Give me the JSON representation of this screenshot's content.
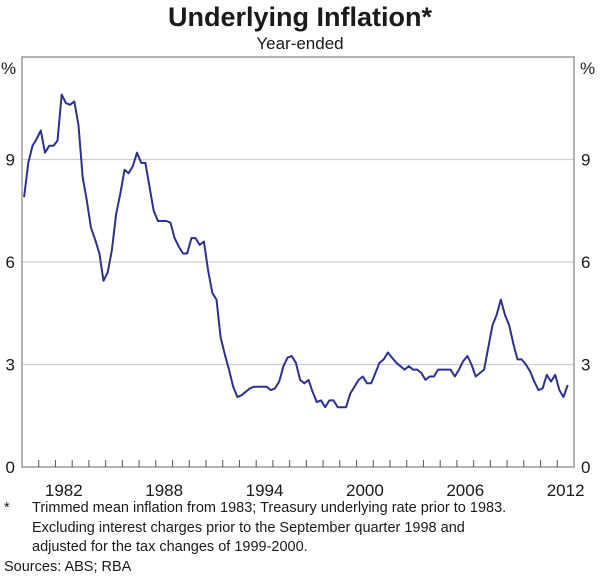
{
  "chart_data": {
    "type": "line",
    "title": "Underlying Inflation*",
    "subtitle": "Year-ended",
    "ylabel_left": "%",
    "ylabel_right": "%",
    "ylim": [
      0,
      12
    ],
    "yticks": [
      0,
      3,
      6,
      9
    ],
    "xlim": [
      1980,
      2013
    ],
    "xtick_labels": [
      "1982",
      "1988",
      "1994",
      "2000",
      "2006",
      "2012"
    ],
    "grid": true,
    "line_color": "#2b3192",
    "x_start_quarter": "1980Q1",
    "frequency": "quarterly",
    "series": [
      {
        "values": [
          7.9,
          8.9,
          9.4,
          9.6,
          9.85,
          9.2,
          9.4,
          9.4,
          9.55,
          10.9,
          10.65,
          10.6,
          10.7,
          10.0,
          8.5,
          7.8,
          7.0,
          6.65,
          6.25,
          5.45,
          5.7,
          6.35,
          7.4,
          8.0,
          8.7,
          8.6,
          8.8,
          9.2,
          8.9,
          8.9,
          8.2,
          7.5,
          7.2,
          7.2,
          7.2,
          7.15,
          6.7,
          6.45,
          6.25,
          6.25,
          6.7,
          6.7,
          6.5,
          6.6,
          5.75,
          5.1,
          4.9,
          3.8,
          3.3,
          2.85,
          2.35,
          2.05,
          2.1,
          2.2,
          2.3,
          2.35,
          2.35,
          2.35,
          2.35,
          2.25,
          2.3,
          2.5,
          2.95,
          3.2,
          3.25,
          3.05,
          2.55,
          2.45,
          2.55,
          2.2,
          1.9,
          1.95,
          1.75,
          1.95,
          1.95,
          1.75,
          1.75,
          1.75,
          2.15,
          2.35,
          2.55,
          2.65,
          2.45,
          2.45,
          2.75,
          3.05,
          3.15,
          3.35,
          3.2,
          3.05,
          2.95,
          2.85,
          2.95,
          2.85,
          2.85,
          2.75,
          2.55,
          2.65,
          2.65,
          2.85,
          2.85,
          2.85,
          2.85,
          2.65,
          2.85,
          3.1,
          3.25,
          3.0,
          2.65,
          2.75,
          2.85,
          3.5,
          4.15,
          4.45,
          4.9,
          4.45,
          4.15,
          3.6,
          3.15,
          3.15,
          3.0,
          2.8,
          2.5,
          2.25,
          2.3,
          2.7,
          2.5,
          2.7,
          2.25,
          2.05,
          2.4
        ]
      }
    ]
  },
  "notes": {
    "star": "*",
    "footnote_lines": [
      "Trimmed mean inflation from 1983; Treasury underlying rate prior to 1983.",
      "Excluding interest charges prior to the September quarter 1998 and",
      "adjusted for the tax changes of 1999-2000."
    ],
    "sources": "Sources: ABS; RBA"
  }
}
